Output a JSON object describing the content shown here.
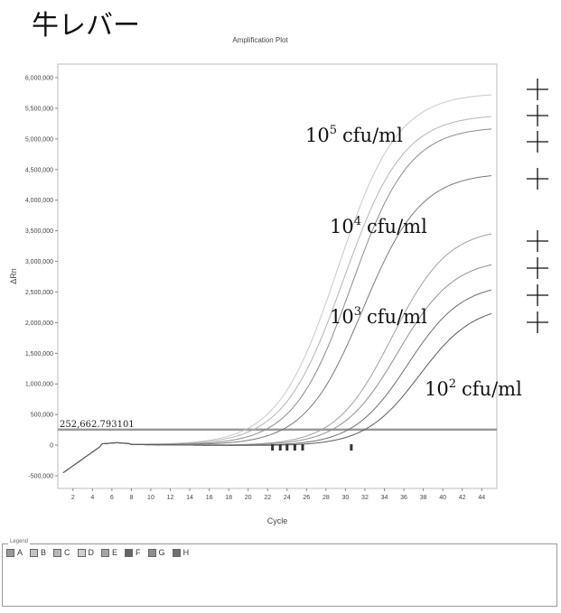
{
  "header": {
    "title": "牛レバー"
  },
  "chart_data": {
    "type": "line",
    "title": "Amplification Plot",
    "xlabel": "Cycle",
    "ylabel": "ΔRn",
    "xlim": [
      1,
      45
    ],
    "ylim": [
      -500000,
      6000000
    ],
    "xticks": [
      2,
      4,
      6,
      8,
      10,
      12,
      14,
      16,
      18,
      20,
      22,
      24,
      26,
      28,
      30,
      32,
      34,
      36,
      38,
      40,
      42,
      44
    ],
    "yticks": [
      {
        "value": -500000,
        "label": "-500,000"
      },
      {
        "value": 0,
        "label": "0"
      },
      {
        "value": 500000,
        "label": "500,000"
      },
      {
        "value": 1000000,
        "label": "1,000,000"
      },
      {
        "value": 1500000,
        "label": "1,500,000"
      },
      {
        "value": 2000000,
        "label": "2,000,000"
      },
      {
        "value": 2500000,
        "label": "2,500,000"
      },
      {
        "value": 3000000,
        "label": "3,000,000"
      },
      {
        "value": 3500000,
        "label": "3,500,000"
      },
      {
        "value": 4000000,
        "label": "4,000,000"
      },
      {
        "value": 4500000,
        "label": "4,500,000"
      },
      {
        "value": 5000000,
        "label": "5,000,000"
      },
      {
        "value": 5500000,
        "label": "5,500,000"
      },
      {
        "value": 6000000,
        "label": "6,000,000"
      }
    ],
    "threshold": {
      "value": 252662.793101,
      "label": "252,662.793101",
      "color": "#999999"
    },
    "series": [
      {
        "color": "#c8c8c8",
        "ct": 29.2,
        "plateau": 5800000,
        "slope": 0.29
      },
      {
        "color": "#b4b4b4",
        "ct": 29.8,
        "plateau": 5450000,
        "slope": 0.29
      },
      {
        "color": "#8c8c8c",
        "ct": 30.6,
        "plateau": 5250000,
        "slope": 0.3
      },
      {
        "color": "#7a7a7a",
        "ct": 31.8,
        "plateau": 4500000,
        "slope": 0.3
      },
      {
        "color": "#a0a0a0",
        "ct": 34.8,
        "plateau": 3600000,
        "slope": 0.31
      },
      {
        "color": "#909090",
        "ct": 35.4,
        "plateau": 3100000,
        "slope": 0.31
      },
      {
        "color": "#6e6e6e",
        "ct": 36.4,
        "plateau": 2700000,
        "slope": 0.32
      },
      {
        "color": "#5a5a5a",
        "ct": 37.6,
        "plateau": 2350000,
        "slope": 0.32
      }
    ],
    "annotations": [
      {
        "base": "10",
        "exp": "5",
        "unit": "cfu/ml"
      },
      {
        "base": "10",
        "exp": "4",
        "unit": "cfu/ml"
      },
      {
        "base": "10",
        "exp": "3",
        "unit": "cfu/ml"
      },
      {
        "base": "10",
        "exp": "2",
        "unit": "cfu/ml"
      }
    ],
    "result_marks": [
      "+",
      "+",
      "+",
      "+",
      "+",
      "+",
      "+",
      "+"
    ]
  },
  "legend": {
    "caption": "Legend",
    "items": [
      {
        "label": "A",
        "color": "#9a9a9a"
      },
      {
        "label": "B",
        "color": "#c4c4c4"
      },
      {
        "label": "C",
        "color": "#b8b8b8"
      },
      {
        "label": "D",
        "color": "#cfcfcf"
      },
      {
        "label": "E",
        "color": "#a6a6a6"
      },
      {
        "label": "F",
        "color": "#666666"
      },
      {
        "label": "G",
        "color": "#8e8e8e"
      },
      {
        "label": "H",
        "color": "#707070"
      }
    ]
  }
}
